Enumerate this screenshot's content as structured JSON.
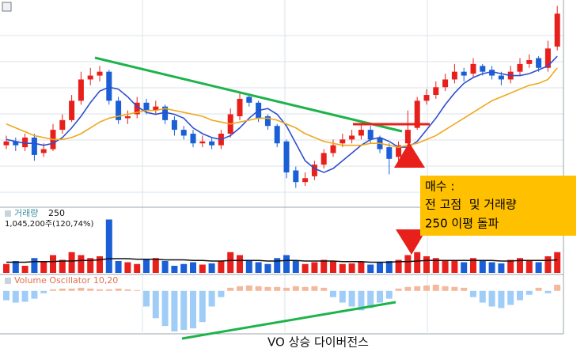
{
  "chart_data": [
    {
      "type": "candlestick",
      "up_color": "#e8201c",
      "down_color": "#1a5fd6",
      "ylim": [
        0,
        105
      ],
      "open": [
        32,
        34,
        31,
        36,
        28,
        30,
        40,
        45,
        55,
        66,
        68,
        70,
        55,
        46,
        48,
        54,
        50,
        52,
        45,
        40,
        38,
        33,
        34,
        32,
        38,
        47,
        57,
        54,
        47,
        42,
        34,
        19,
        13,
        16,
        22,
        28,
        33,
        35,
        37,
        40,
        36,
        31,
        26,
        33,
        41,
        55,
        58,
        62,
        66,
        70,
        69,
        73,
        71,
        68,
        66,
        70,
        74,
        77,
        72,
        83
      ],
      "high": [
        37,
        36,
        38,
        38,
        33,
        43,
        48,
        58,
        70,
        72,
        73,
        71,
        57,
        50,
        57,
        56,
        55,
        53,
        47,
        42,
        40,
        37,
        36,
        40,
        51,
        59,
        58,
        55,
        48,
        43,
        35,
        21,
        18,
        24,
        30,
        35,
        38,
        40,
        43,
        42,
        37,
        33,
        34,
        50,
        57,
        61,
        65,
        69,
        74,
        72,
        77,
        74,
        73,
        70,
        73,
        77,
        79,
        78,
        86,
        104
      ],
      "low": [
        30,
        29,
        29,
        24,
        26,
        29,
        38,
        44,
        53,
        63,
        65,
        53,
        43,
        43,
        46,
        48,
        48,
        43,
        37,
        35,
        31,
        31,
        30,
        30,
        36,
        45,
        52,
        44,
        40,
        31,
        15,
        10,
        11,
        14,
        20,
        26,
        31,
        33,
        35,
        33,
        28,
        17,
        24,
        31,
        40,
        53,
        56,
        60,
        64,
        65,
        67,
        68,
        66,
        63,
        64,
        68,
        72,
        70,
        70,
        81
      ],
      "close": [
        34,
        32,
        36,
        27,
        30,
        40,
        45,
        55,
        66,
        68,
        70,
        55,
        45,
        47,
        54,
        50,
        52,
        45,
        40,
        37,
        33,
        34,
        32,
        38,
        48,
        56,
        54,
        46,
        42,
        33,
        18,
        13,
        15,
        22,
        28,
        32,
        35,
        37,
        40,
        35,
        30,
        25,
        32,
        40,
        55,
        58,
        62,
        66,
        70,
        68,
        74,
        70,
        68,
        66,
        70,
        74,
        76,
        72,
        82,
        100
      ],
      "ma": [
        {
          "color": "#2e4fd0",
          "values": [
            35,
            34,
            33,
            33,
            32,
            33,
            36,
            41,
            47,
            54,
            60,
            62,
            61,
            57,
            52,
            49,
            48,
            49,
            48,
            46,
            41,
            38,
            36,
            35,
            37,
            41,
            46,
            50,
            51,
            48,
            42,
            33,
            24,
            20,
            18,
            20,
            24,
            28,
            32,
            35,
            36,
            34,
            31,
            31,
            34,
            40,
            46,
            53,
            59,
            64,
            67,
            69,
            70,
            69,
            68,
            68,
            69,
            71,
            73,
            78
          ]
        },
        {
          "color": "#f0a81c",
          "values": [
            43,
            41,
            39,
            37,
            36,
            35,
            35,
            36,
            38,
            41,
            44,
            46,
            47,
            48,
            49,
            50,
            50,
            51,
            50,
            49,
            48,
            47,
            45,
            44,
            43,
            44,
            45,
            46,
            46,
            45,
            43,
            41,
            38,
            36,
            34,
            33,
            32,
            32,
            32,
            33,
            33,
            32,
            31,
            32,
            33,
            35,
            37,
            40,
            43,
            46,
            49,
            52,
            55,
            57,
            59,
            61,
            63,
            64,
            66,
            72
          ]
        }
      ],
      "annotation": [
        "매수 :",
        "전 고점  및 거래량",
        "250 이평 돌파"
      ]
    },
    {
      "type": "bar",
      "title": "거래량",
      "ma_label": "250",
      "info": "1,045,200주(120,74%)",
      "ylim": [
        0,
        100
      ],
      "values": [
        15,
        20,
        12,
        25,
        18,
        30,
        22,
        35,
        30,
        25,
        28,
        90,
        20,
        18,
        15,
        22,
        25,
        20,
        12,
        15,
        18,
        14,
        16,
        20,
        35,
        30,
        22,
        18,
        15,
        25,
        30,
        20,
        15,
        18,
        22,
        20,
        15,
        16,
        18,
        14,
        18,
        20,
        22,
        30,
        35,
        28,
        25,
        20,
        22,
        18,
        25,
        20,
        18,
        16,
        22,
        25,
        20,
        18,
        28,
        35
      ],
      "ma": {
        "color": "#111111",
        "values": [
          18,
          18,
          18,
          19,
          19,
          19,
          20,
          20,
          21,
          21,
          22,
          24,
          24,
          24,
          23,
          23,
          23,
          22,
          22,
          22,
          21,
          21,
          20,
          20,
          21,
          21,
          21,
          21,
          20,
          20,
          21,
          21,
          20,
          20,
          20,
          20,
          19,
          19,
          19,
          18,
          18,
          18,
          19,
          19,
          20,
          21,
          21,
          21,
          21,
          21,
          21,
          21,
          21,
          20,
          20,
          21,
          21,
          21,
          21,
          22
        ]
      }
    },
    {
      "type": "bar",
      "title": "Volume Oscillator 10,20",
      "pos_color": "#f4b89c",
      "neg_color": "#9fcdf7",
      "ylim": [
        -55,
        18
      ],
      "values": [
        -12,
        -15,
        -14,
        -10,
        -3,
        2,
        3,
        3,
        4,
        3,
        2,
        2,
        3,
        2,
        1,
        -20,
        -35,
        -45,
        -52,
        -50,
        -48,
        -40,
        -20,
        -8,
        4,
        6,
        7,
        6,
        5,
        5,
        4,
        6,
        5,
        6,
        4,
        -8,
        -15,
        -20,
        -25,
        -22,
        -15,
        -10,
        3,
        5,
        6,
        7,
        8,
        6,
        5,
        4,
        -8,
        -15,
        -20,
        -22,
        -18,
        -12,
        -5,
        4,
        -3,
        8
      ],
      "annotation": "VO 상승 다이버전스"
    }
  ]
}
